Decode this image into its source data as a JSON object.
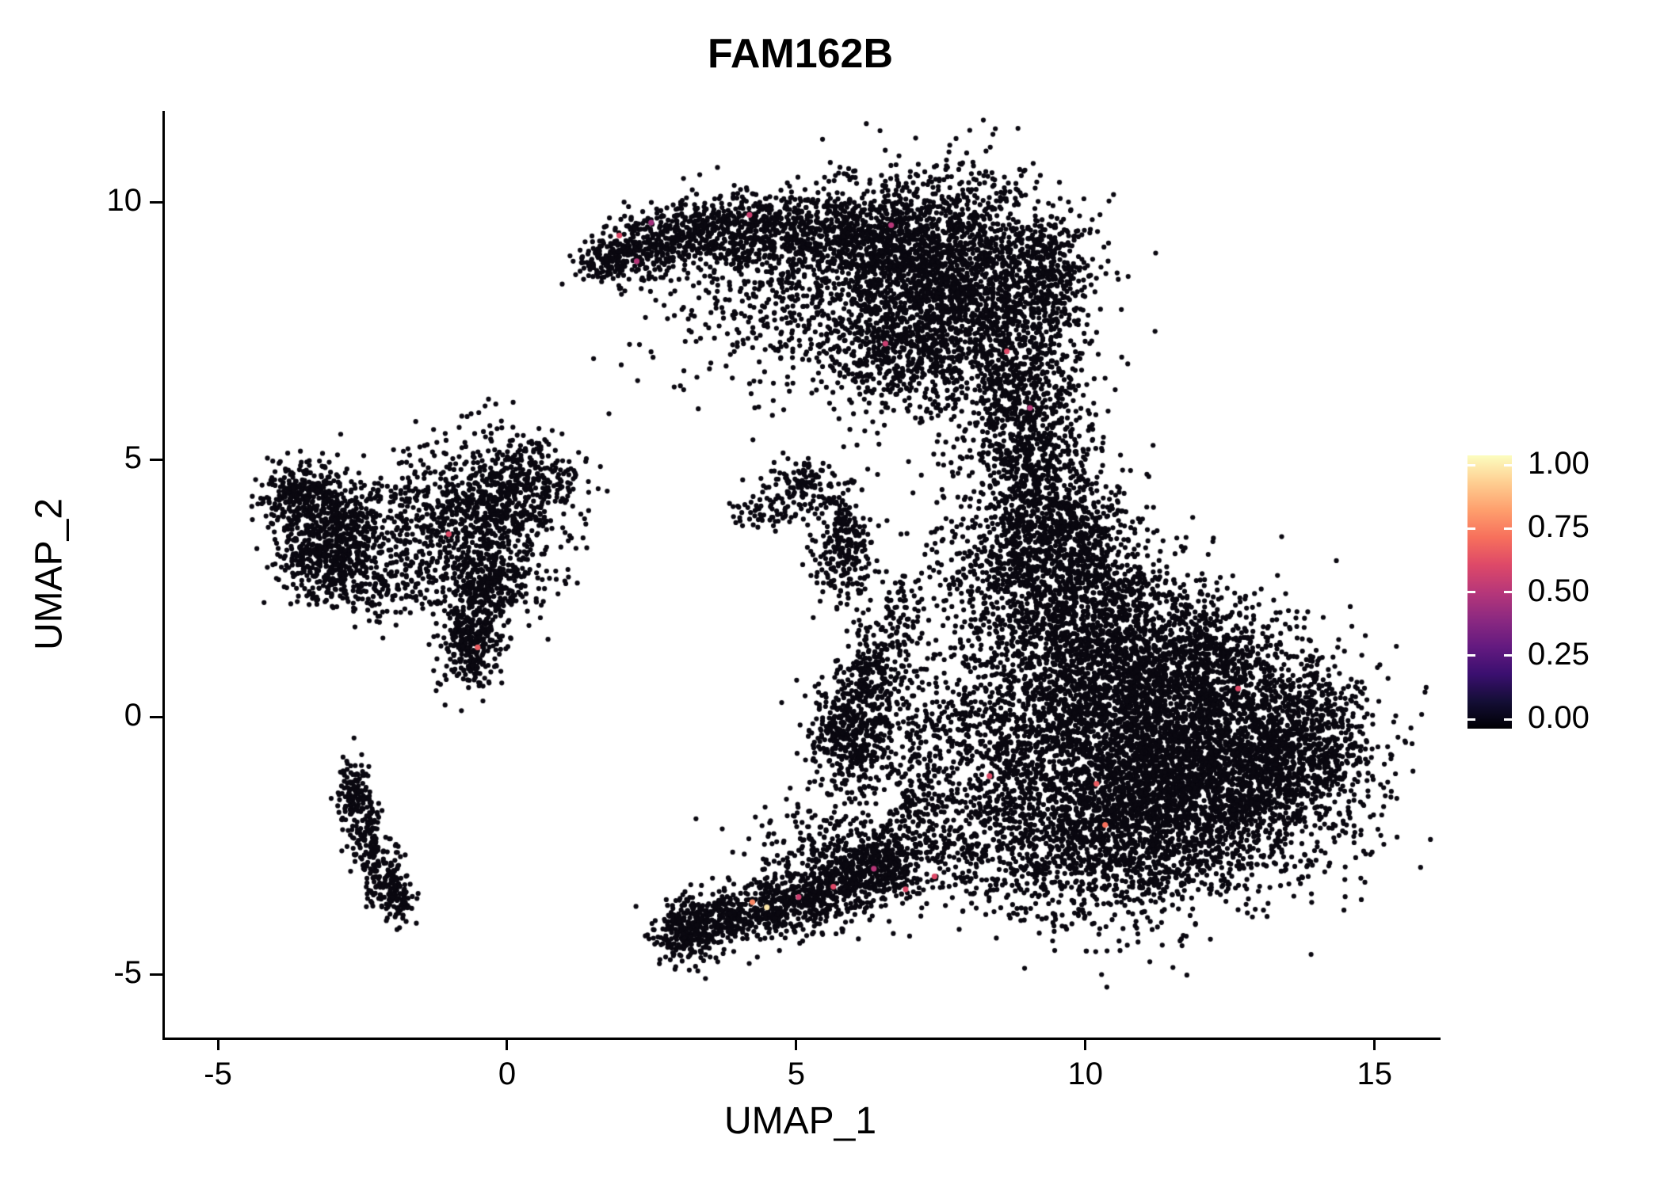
{
  "chart_data": {
    "type": "scatter",
    "title": "FAM162B",
    "xlabel": "UMAP_1",
    "ylabel": "UMAP_2",
    "xlim": [
      -5.96,
      16.1
    ],
    "ylim": [
      -6.23,
      11.77
    ],
    "x_ticks": [
      -5,
      0,
      5,
      10,
      15
    ],
    "x_tick_labels": [
      "-5",
      "0",
      "5",
      "10",
      "15"
    ],
    "y_ticks": [
      -5,
      0,
      5,
      10
    ],
    "y_tick_labels": [
      "-5",
      "0",
      "5",
      "10"
    ],
    "grid": false,
    "legend_position": "right",
    "point_color": "#0a0810",
    "point_radius": 3.1,
    "highlight_radius": 3.6,
    "seed": 42,
    "colorbar": {
      "tick_values": [
        1.0,
        0.75,
        0.5,
        0.25,
        0.0
      ],
      "tick_labels": [
        "1.00",
        "0.75",
        "0.50",
        "0.25",
        "0.00"
      ],
      "colors_bottom_to_top": [
        "#000004",
        "#140e36",
        "#3b0f70",
        "#641a80",
        "#8c2981",
        "#b73779",
        "#de4968",
        "#f7705c",
        "#fe9f6d",
        "#fece91",
        "#fcfdbf"
      ]
    },
    "cluster_fields": [
      "x_center",
      "y_center",
      "x_sd",
      "y_sd",
      "n_points"
    ],
    "clusters": [
      [
        7.6,
        8.4,
        1.05,
        1.05,
        2400
      ],
      [
        6.1,
        9.3,
        0.9,
        0.5,
        650
      ],
      [
        4.4,
        9.5,
        0.8,
        0.38,
        520
      ],
      [
        2.9,
        9.3,
        0.6,
        0.32,
        330
      ],
      [
        2.0,
        8.95,
        0.35,
        0.25,
        160
      ],
      [
        1.55,
        8.75,
        0.22,
        0.18,
        60
      ],
      [
        4.6,
        8.35,
        1.0,
        0.55,
        240
      ],
      [
        5.1,
        7.5,
        0.9,
        0.6,
        160
      ],
      [
        6.8,
        7.0,
        0.7,
        0.6,
        300
      ],
      [
        8.9,
        6.4,
        0.5,
        0.8,
        380
      ],
      [
        9.35,
        8.6,
        0.35,
        0.6,
        250
      ],
      [
        9.3,
        4.2,
        0.55,
        1.1,
        650
      ],
      [
        8.8,
        4.9,
        0.3,
        0.8,
        200
      ],
      [
        8.75,
        2.8,
        0.85,
        0.8,
        620
      ],
      [
        9.9,
        3.3,
        0.6,
        0.7,
        350
      ],
      [
        11.0,
        -0.5,
        1.5,
        1.15,
        3300
      ],
      [
        12.5,
        -1.4,
        1.1,
        0.95,
        1400
      ],
      [
        10.3,
        -2.4,
        1.1,
        0.85,
        1100
      ],
      [
        13.8,
        -0.4,
        0.55,
        0.75,
        450
      ],
      [
        10.1,
        1.2,
        0.95,
        0.8,
        850
      ],
      [
        11.9,
        1.0,
        0.85,
        0.65,
        600
      ],
      [
        10.6,
        2.3,
        0.9,
        0.5,
        280
      ],
      [
        8.3,
        -0.3,
        0.6,
        0.95,
        300
      ],
      [
        8.1,
        -2.6,
        0.7,
        0.6,
        260
      ],
      [
        -3.15,
        3.4,
        0.45,
        0.55,
        620
      ],
      [
        -3.6,
        4.3,
        0.35,
        0.3,
        240
      ],
      [
        -1.9,
        3.7,
        0.8,
        0.7,
        300
      ],
      [
        -0.5,
        3.8,
        0.7,
        0.8,
        700
      ],
      [
        0.3,
        4.5,
        0.5,
        0.5,
        300
      ],
      [
        -0.35,
        2.6,
        0.45,
        0.4,
        250
      ],
      [
        -0.65,
        1.5,
        0.25,
        0.45,
        330
      ],
      [
        -2.3,
        2.5,
        0.5,
        0.4,
        120
      ],
      [
        5.0,
        4.45,
        0.4,
        0.3,
        130
      ],
      [
        5.75,
        3.35,
        0.22,
        0.5,
        260
      ],
      [
        4.4,
        4.0,
        0.3,
        0.2,
        50
      ],
      [
        5.95,
        -0.25,
        0.38,
        0.6,
        480
      ],
      [
        6.3,
        0.9,
        0.28,
        0.45,
        160
      ],
      [
        6.7,
        1.9,
        0.3,
        0.5,
        90
      ],
      [
        7.2,
        0.2,
        0.45,
        0.55,
        90
      ],
      [
        -2.68,
        -1.45,
        0.14,
        0.38,
        120
      ],
      [
        -2.5,
        -2.25,
        0.15,
        0.35,
        100
      ],
      [
        -2.2,
        -3.0,
        0.17,
        0.33,
        110
      ],
      [
        -1.95,
        -3.55,
        0.15,
        0.28,
        90
      ],
      [
        3.1,
        -4.15,
        0.3,
        0.3,
        300
      ],
      [
        3.9,
        -3.9,
        0.4,
        0.3,
        240
      ],
      [
        4.8,
        -3.6,
        0.45,
        0.33,
        300
      ],
      [
        5.7,
        -3.2,
        0.45,
        0.35,
        340
      ],
      [
        6.5,
        -2.9,
        0.4,
        0.35,
        300
      ],
      [
        5.6,
        -2.3,
        0.7,
        0.4,
        150
      ],
      [
        7.0,
        -1.7,
        0.25,
        0.6,
        160
      ],
      [
        7.8,
        5.5,
        0.7,
        0.7,
        70
      ],
      [
        2.6,
        6.8,
        1.0,
        0.8,
        30
      ]
    ],
    "highlight_fields": [
      "x",
      "y",
      "value"
    ],
    "highlight_points": [
      [
        1.9,
        9.35,
        0.6
      ],
      [
        2.45,
        9.6,
        0.45
      ],
      [
        2.2,
        8.85,
        0.5
      ],
      [
        4.15,
        9.75,
        0.55
      ],
      [
        6.6,
        9.55,
        0.5
      ],
      [
        8.6,
        7.1,
        0.6
      ],
      [
        6.5,
        7.25,
        0.55
      ],
      [
        9.0,
        6.0,
        0.5
      ],
      [
        -1.05,
        3.55,
        0.6
      ],
      [
        -0.55,
        1.35,
        0.65
      ],
      [
        12.6,
        0.55,
        0.6
      ],
      [
        10.15,
        -1.3,
        0.65
      ],
      [
        10.3,
        -2.1,
        0.7
      ],
      [
        8.3,
        -1.15,
        0.6
      ],
      [
        7.35,
        -3.1,
        0.6
      ],
      [
        4.2,
        -3.6,
        0.75
      ],
      [
        4.45,
        -3.7,
        0.95
      ],
      [
        5.6,
        -3.3,
        0.6
      ],
      [
        5.0,
        -3.5,
        0.55
      ],
      [
        6.3,
        -2.95,
        0.5
      ],
      [
        6.85,
        -3.35,
        0.6
      ]
    ]
  }
}
